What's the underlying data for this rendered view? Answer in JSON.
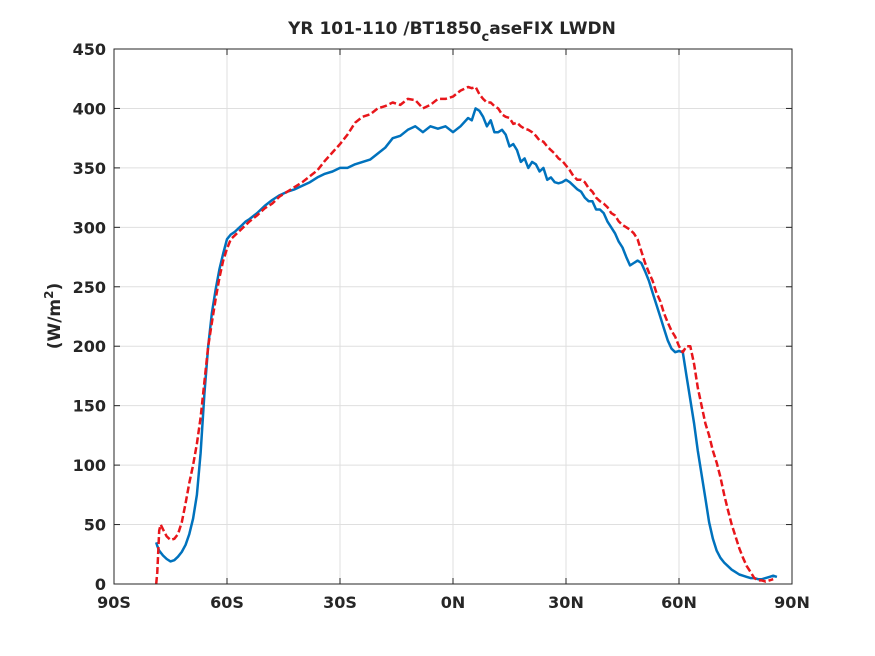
{
  "chart_data": {
    "type": "line",
    "title_main": "YR 101-110 /BT1850",
    "title_sub": "c",
    "title_rest": "aseFIX LWDN",
    "ylabel_prefix": "(W/m",
    "ylabel_sup": "2",
    "ylabel_suffix": ")",
    "xlim": [
      -90,
      90
    ],
    "ylim": [
      0,
      450
    ],
    "xticks": [
      -90,
      -60,
      -30,
      0,
      30,
      60,
      90
    ],
    "xtick_labels": [
      "90S",
      "60S",
      "30S",
      "0N",
      "30N",
      "60N",
      "90N"
    ],
    "yticks": [
      0,
      50,
      100,
      150,
      200,
      250,
      300,
      350,
      400,
      450
    ],
    "ytick_labels": [
      "0",
      "50",
      "100",
      "150",
      "200",
      "250",
      "300",
      "350",
      "400",
      "450"
    ],
    "grid": true,
    "series": [
      {
        "color": "#0072bd",
        "style": "solid",
        "x": [
          -78.8,
          -78.5,
          -78,
          -77,
          -76,
          -75,
          -74,
          -73,
          -72,
          -71,
          -70,
          -69,
          -68,
          -67,
          -66,
          -65,
          -64,
          -63,
          -62,
          -61,
          -60,
          -59,
          -58,
          -57,
          -56,
          -55,
          -54,
          -52,
          -50,
          -48,
          -46,
          -44,
          -42,
          -40,
          -38,
          -36,
          -34,
          -32,
          -30,
          -28,
          -26,
          -24,
          -22,
          -20,
          -18,
          -16,
          -14,
          -12,
          -10,
          -8,
          -6,
          -4,
          -2,
          0,
          2,
          4,
          5,
          6,
          7,
          8,
          9,
          10,
          11,
          12,
          13,
          14,
          15,
          16,
          17,
          18,
          19,
          20,
          21,
          22,
          23,
          24,
          25,
          26,
          27,
          28,
          29,
          30,
          31,
          32,
          33,
          34,
          35,
          36,
          37,
          38,
          39,
          40,
          41,
          42,
          43,
          44,
          45,
          46,
          47,
          48,
          49,
          50,
          51,
          52,
          53,
          54,
          55,
          56,
          57,
          58,
          59,
          60,
          61,
          62,
          63,
          64,
          65,
          66,
          67,
          68,
          69,
          70,
          71,
          72,
          73,
          74,
          75,
          76,
          77,
          78,
          79,
          80,
          81,
          82,
          83,
          84,
          85,
          86
        ],
        "y": [
          35,
          32,
          28,
          24,
          21,
          19,
          20,
          23,
          27,
          33,
          42,
          55,
          75,
          110,
          160,
          200,
          228,
          248,
          265,
          278,
          290,
          294,
          296,
          299,
          302,
          305,
          307,
          312,
          318,
          323,
          327,
          330,
          332,
          335,
          338,
          342,
          345,
          347,
          350,
          350,
          353,
          355,
          357,
          362,
          367,
          375,
          377,
          382,
          385,
          380,
          385,
          383,
          385,
          380,
          385,
          392,
          390,
          400,
          398,
          393,
          385,
          390,
          380,
          380,
          382,
          378,
          368,
          370,
          365,
          355,
          358,
          350,
          355,
          353,
          347,
          350,
          340,
          342,
          338,
          337,
          338,
          340,
          338,
          335,
          332,
          330,
          325,
          322,
          322,
          315,
          315,
          312,
          305,
          300,
          295,
          288,
          283,
          275,
          268,
          270,
          272,
          270,
          263,
          255,
          245,
          235,
          225,
          215,
          205,
          198,
          195,
          196,
          195,
          175,
          155,
          135,
          112,
          92,
          72,
          52,
          38,
          28,
          22,
          18,
          15,
          12,
          10,
          8,
          7,
          6,
          5,
          5,
          4,
          4,
          5,
          6,
          7,
          6
        ]
      },
      {
        "color": "#e8161b",
        "style": "dashed",
        "x": [
          -78.8,
          -78.5,
          -78.2,
          -78,
          -77.6,
          -77,
          -76,
          -75,
          -74,
          -73,
          -72,
          -71,
          -70,
          -69,
          -68,
          -67,
          -66,
          -65,
          -64,
          -63,
          -62,
          -61,
          -60,
          -59,
          -58,
          -57,
          -56,
          -55,
          -54,
          -52,
          -50,
          -48,
          -46,
          -44,
          -42,
          -40,
          -38,
          -36,
          -34,
          -32,
          -30,
          -28,
          -26,
          -24,
          -22,
          -20,
          -18,
          -16,
          -14,
          -12,
          -10,
          -8,
          -6,
          -4,
          -2,
          0,
          2,
          4,
          5,
          6,
          7,
          8,
          9,
          10,
          11,
          12,
          13,
          14,
          15,
          16,
          17,
          18,
          19,
          20,
          21,
          22,
          23,
          24,
          25,
          26,
          27,
          28,
          29,
          30,
          31,
          32,
          33,
          34,
          35,
          36,
          37,
          38,
          39,
          40,
          41,
          42,
          43,
          44,
          45,
          46,
          47,
          48,
          49,
          50,
          51,
          52,
          53,
          54,
          55,
          56,
          57,
          58,
          59,
          60,
          61,
          62,
          63,
          64,
          65,
          66,
          67,
          68,
          69,
          70,
          71,
          72,
          73,
          74,
          75,
          76,
          77,
          78,
          79,
          80,
          81,
          82,
          83,
          84,
          85
        ],
        "y": [
          0,
          10,
          30,
          45,
          50,
          46,
          40,
          37,
          38,
          42,
          52,
          68,
          85,
          100,
          118,
          140,
          170,
          200,
          220,
          240,
          258,
          272,
          282,
          290,
          293,
          296,
          299,
          302,
          305,
          310,
          316,
          320,
          326,
          330,
          334,
          338,
          343,
          348,
          356,
          363,
          370,
          378,
          388,
          393,
          395,
          400,
          402,
          405,
          403,
          408,
          407,
          400,
          403,
          408,
          408,
          410,
          415,
          418,
          417,
          418,
          412,
          408,
          405,
          405,
          402,
          400,
          395,
          393,
          392,
          387,
          388,
          385,
          383,
          382,
          380,
          377,
          373,
          372,
          368,
          365,
          362,
          358,
          356,
          352,
          348,
          343,
          340,
          340,
          338,
          333,
          330,
          325,
          322,
          320,
          317,
          312,
          310,
          305,
          302,
          300,
          298,
          295,
          290,
          280,
          270,
          262,
          255,
          245,
          238,
          228,
          220,
          213,
          208,
          200,
          195,
          200,
          200,
          185,
          165,
          150,
          135,
          125,
          112,
          102,
          90,
          75,
          62,
          50,
          40,
          30,
          22,
          15,
          10,
          5,
          3,
          3,
          2,
          3,
          4
        ]
      }
    ]
  }
}
